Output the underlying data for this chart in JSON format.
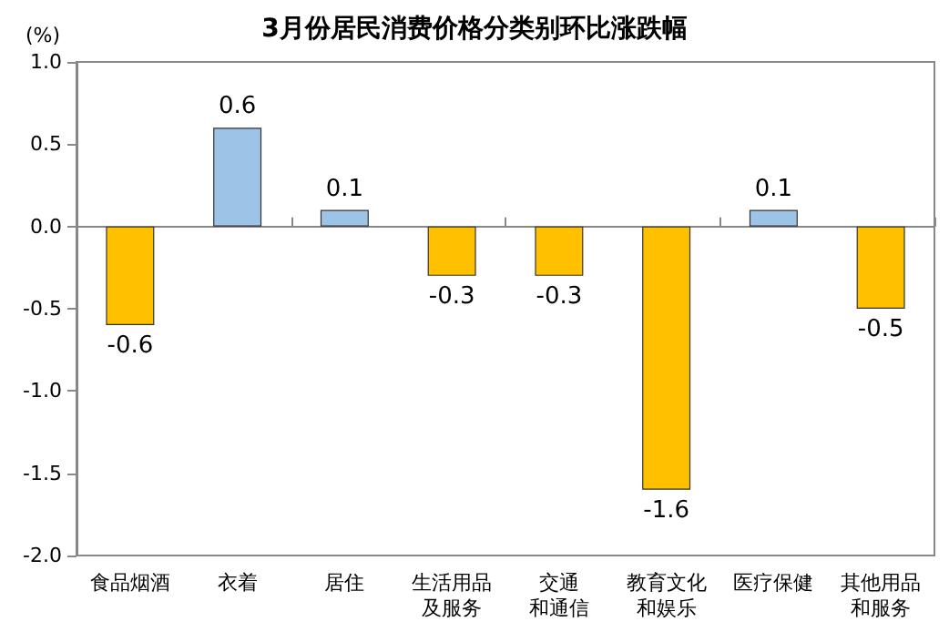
{
  "chart_data": {
    "type": "bar",
    "title": "3月份居民消费价格分类别环比涨跌幅",
    "ylabel": "(%)",
    "categories": [
      "食品烟酒",
      "衣着",
      "居住",
      "生活用品及服务",
      "交通和通信",
      "教育文化和娱乐",
      "医疗保健",
      "其他用品和服务"
    ],
    "values": [
      -0.6,
      0.6,
      0.1,
      -0.3,
      -0.3,
      -1.6,
      0.1,
      -0.5
    ],
    "colors": [
      "#ffc000",
      "#9dc3e6",
      "#9dc3e6",
      "#ffc000",
      "#ffc000",
      "#ffc000",
      "#9dc3e6",
      "#ffc000"
    ],
    "ylim": [
      -2.0,
      1.0
    ],
    "yticks": [
      {
        "value": -2,
        "label": "-2.0"
      },
      {
        "value": -1.5,
        "label": "-1.5"
      },
      {
        "value": -1,
        "label": "-1.0"
      },
      {
        "value": -0.5,
        "label": "-0.5"
      },
      {
        "value": 0,
        "label": "0.0"
      },
      {
        "value": 0.5,
        "label": "0.5"
      },
      {
        "value": 1,
        "label": "1.0"
      }
    ],
    "data_labels": true
  }
}
